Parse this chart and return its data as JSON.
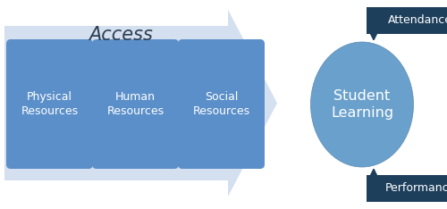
{
  "bg_color": "#ffffff",
  "arrow_bg_color": "#d4dff0",
  "box_color": "#5b8fc9",
  "dark_box_color": "#1e3f5c",
  "ellipse_color": "#6aa0cc",
  "text_white": "#ffffff",
  "text_dark": "#2c3e50",
  "access_label": "Access",
  "boxes": [
    "Physical\nResources",
    "Human\nResources",
    "Social\nResources"
  ],
  "ellipse_label": "Student\nLearning",
  "top_box_label": "Attendance",
  "bottom_box_label": "Performance",
  "figw": 5.0,
  "figh": 2.34,
  "dpi": 100
}
